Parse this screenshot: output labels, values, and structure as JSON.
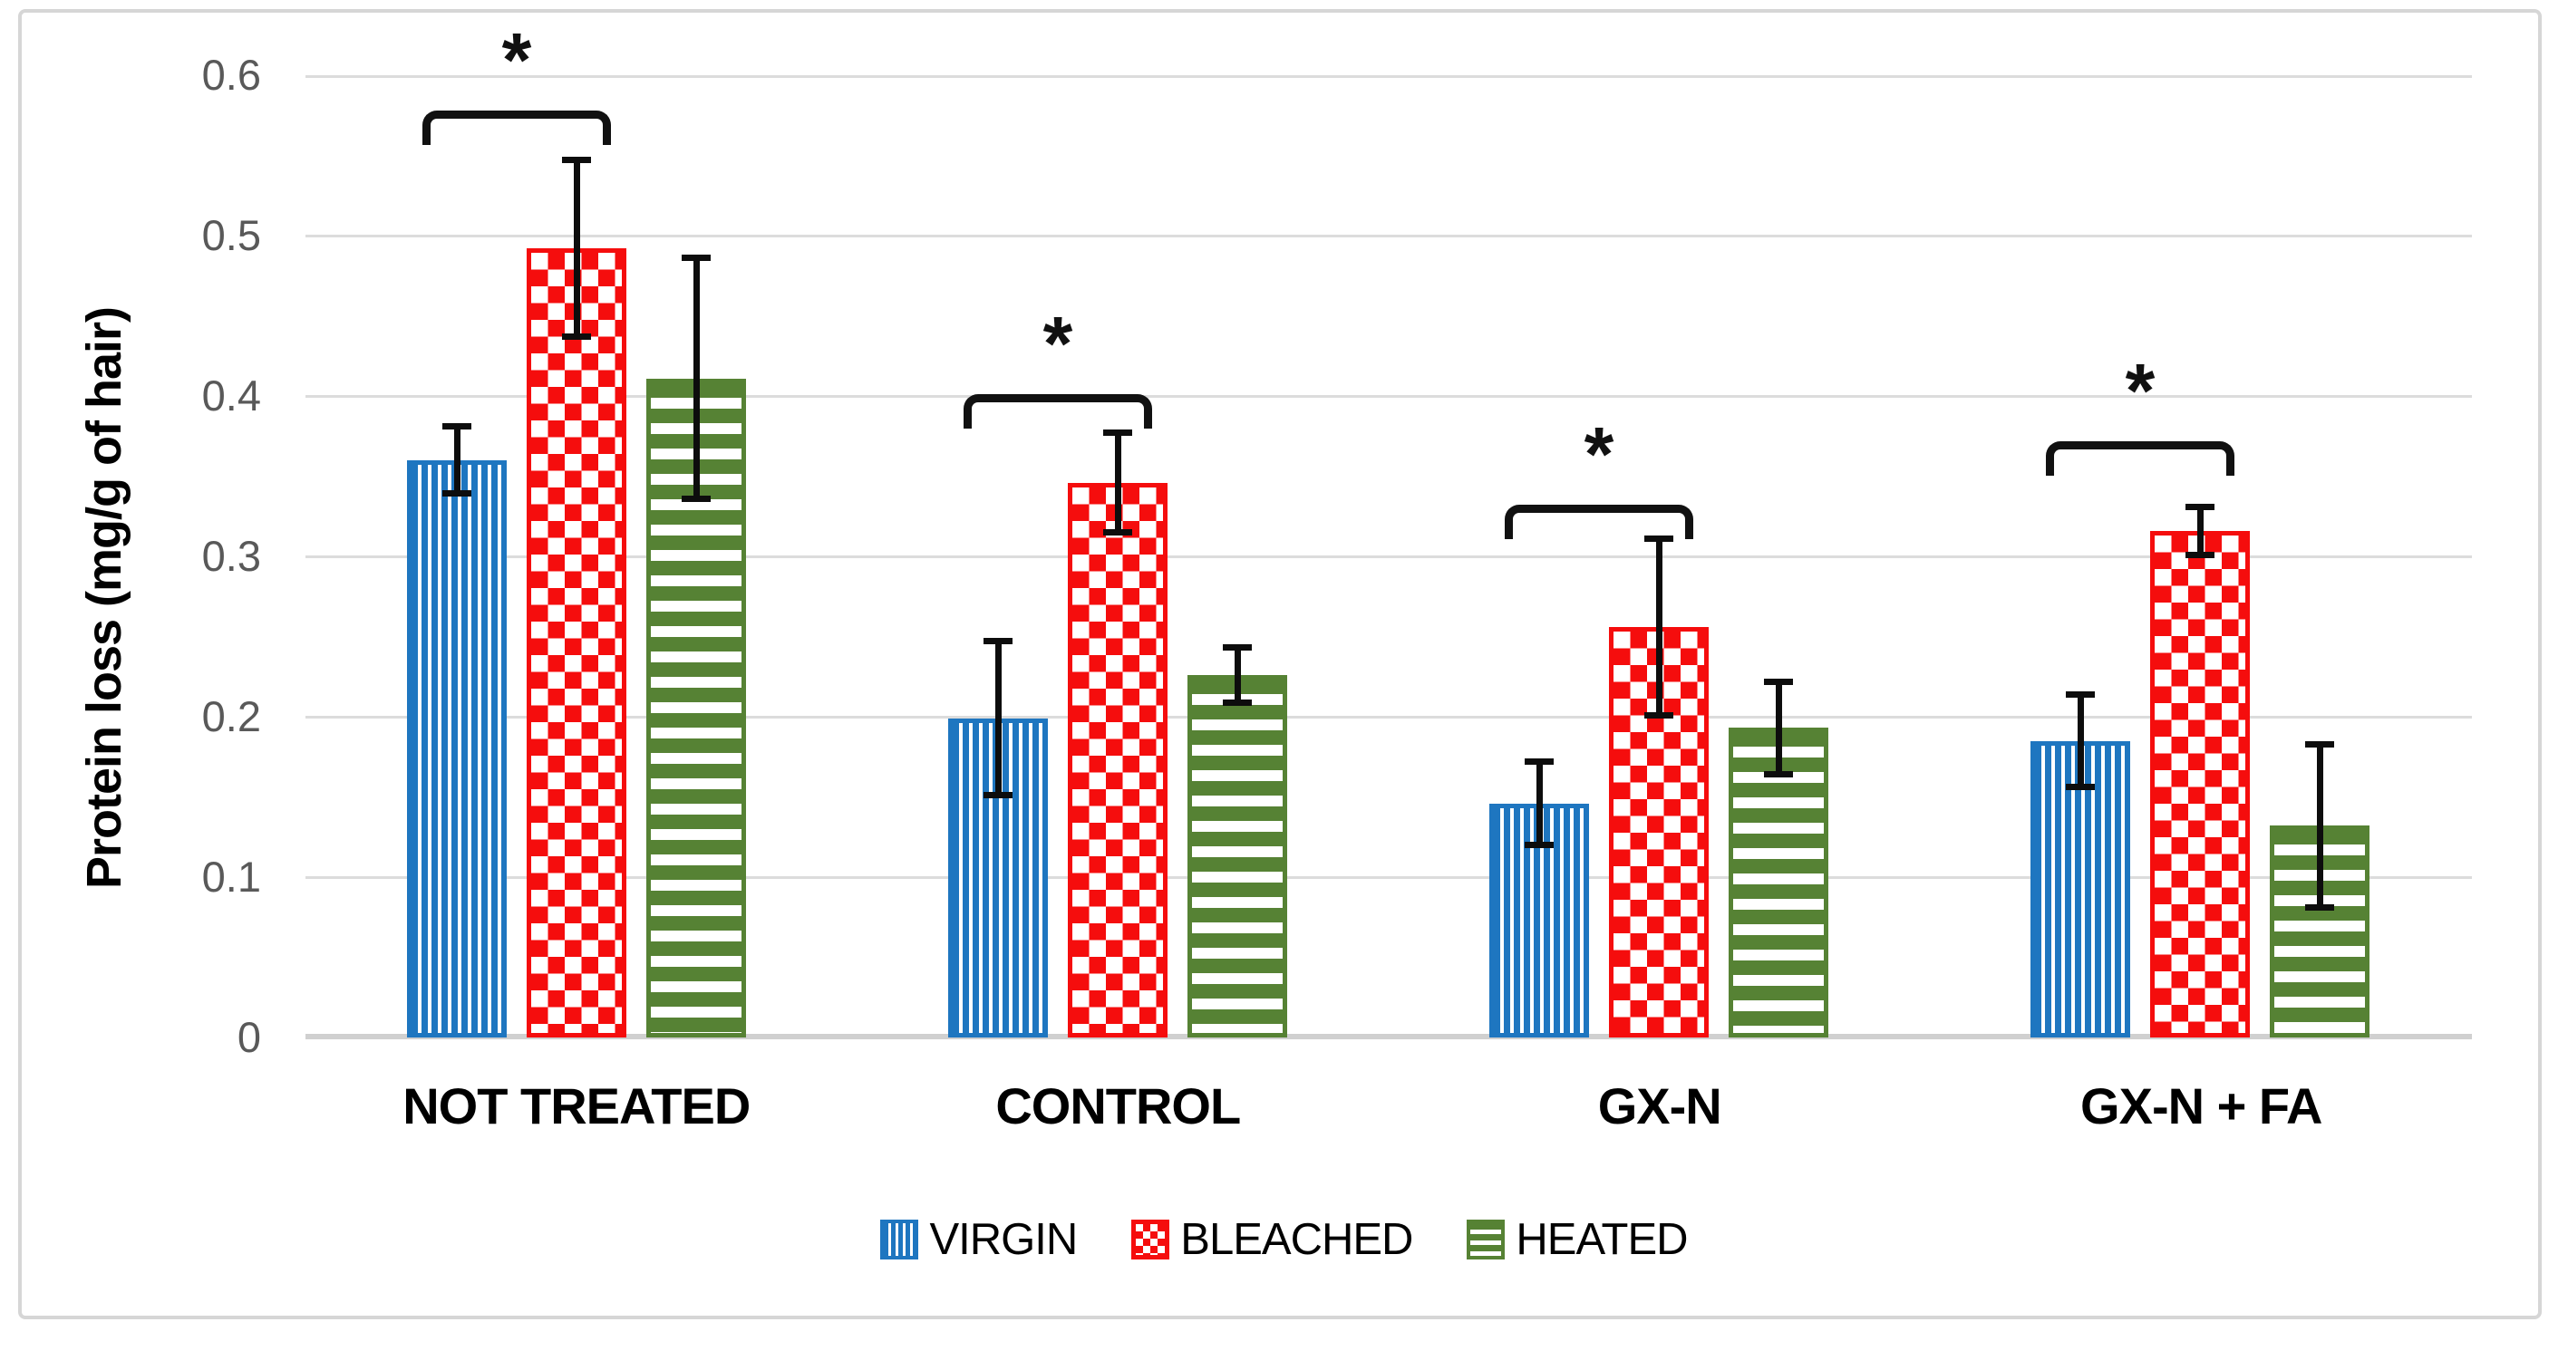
{
  "figure": {
    "background": "#FFFFFF",
    "frame_color": "#D6D6D6"
  },
  "chart_data": {
    "type": "bar",
    "title": "",
    "ylabel": "Protein loss (mg/g of hair)",
    "xlabel": "",
    "ylim": [
      0,
      0.6
    ],
    "yticks": [
      0,
      0.1,
      0.2,
      0.3,
      0.4,
      0.5,
      0.6
    ],
    "grid": true,
    "gridline_color": "#DCDCDC",
    "axis_tick_color": "#595959",
    "legend_position": "bottom",
    "categories": [
      "NOT TREATED",
      "CONTROL",
      "GX-N",
      "GX-N + FA"
    ],
    "series": [
      {
        "name": "VIRGIN",
        "color": "#1E76C0",
        "pattern": "vertical-stripes",
        "values": [
          0.36,
          0.199,
          0.146,
          0.185
        ],
        "errors": [
          0.023,
          0.05,
          0.028,
          0.031
        ]
      },
      {
        "name": "BLEACHED",
        "color": "#F50D0D",
        "pattern": "checkerboard",
        "values": [
          0.492,
          0.346,
          0.256,
          0.316
        ],
        "errors": [
          0.057,
          0.033,
          0.057,
          0.017
        ]
      },
      {
        "name": "HEATED",
        "color": "#568234",
        "pattern": "horizontal-stripes",
        "values": [
          0.411,
          0.226,
          0.193,
          0.132
        ],
        "errors": [
          0.077,
          0.019,
          0.031,
          0.053
        ]
      }
    ],
    "significance_brackets": [
      {
        "category": "NOT TREATED",
        "between": [
          "VIRGIN",
          "BLEACHED"
        ],
        "label": "*",
        "height": 0.578
      },
      {
        "category": "CONTROL",
        "between": [
          "VIRGIN",
          "BLEACHED"
        ],
        "label": "*",
        "height": 0.401
      },
      {
        "category": "GX-N",
        "between": [
          "VIRGIN",
          "BLEACHED"
        ],
        "label": "*",
        "height": 0.332
      },
      {
        "category": "GX-N + FA",
        "between": [
          "VIRGIN",
          "BLEACHED"
        ],
        "label": "*",
        "height": 0.372
      }
    ]
  }
}
